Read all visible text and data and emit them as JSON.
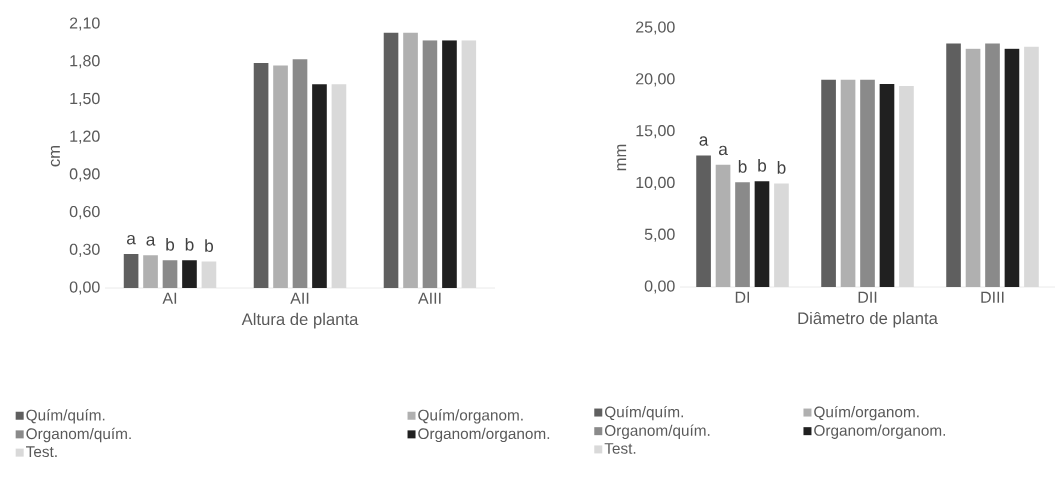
{
  "chart_data": [
    {
      "type": "bar",
      "xlabel": "Altura de planta",
      "ylabel": "cm",
      "categories": [
        "AI",
        "AII",
        "AIII"
      ],
      "series": [
        {
          "name": "Quím/quím.",
          "color": "#5f5f5f",
          "values": [
            0.27,
            1.79,
            2.03
          ]
        },
        {
          "name": "Quím/organom.",
          "color": "#b0b0b0",
          "values": [
            0.26,
            1.77,
            2.03
          ]
        },
        {
          "name": "Organom/quím.",
          "color": "#8a8a8a",
          "values": [
            0.22,
            1.82,
            1.97
          ]
        },
        {
          "name": "Organom/organom.",
          "color": "#202020",
          "values": [
            0.22,
            1.62,
            1.97
          ]
        },
        {
          "name": "Test.",
          "color": "#d9d9d9",
          "values": [
            0.21,
            1.62,
            1.97
          ]
        }
      ],
      "ylim": [
        0,
        2.1
      ],
      "yticks": [
        {
          "value": 0,
          "label": "0,00"
        },
        {
          "value": 0.3,
          "label": "0,30"
        },
        {
          "value": 0.6,
          "label": "0,60"
        },
        {
          "value": 0.9,
          "label": "0,90"
        },
        {
          "value": 1.2,
          "label": "1,20"
        },
        {
          "value": 1.5,
          "label": "1,50"
        },
        {
          "value": 1.8,
          "label": "1,80"
        },
        {
          "value": 2.1,
          "label": "2,10"
        }
      ],
      "annotations": [
        "a",
        "a",
        "b",
        "b",
        "b"
      ],
      "grid": false,
      "legend": "bottom"
    },
    {
      "type": "bar",
      "xlabel": "Diâmetro de planta",
      "ylabel": "mm",
      "categories": [
        "DI",
        "DII",
        "DIII"
      ],
      "series": [
        {
          "name": "Quím/quím.",
          "color": "#5f5f5f",
          "values": [
            12.7,
            20.0,
            23.5
          ]
        },
        {
          "name": "Quím/organom.",
          "color": "#b0b0b0",
          "values": [
            11.8,
            20.0,
            23.0
          ]
        },
        {
          "name": "Organom/quím.",
          "color": "#8a8a8a",
          "values": [
            10.1,
            20.0,
            23.5
          ]
        },
        {
          "name": "Organom/organom.",
          "color": "#202020",
          "values": [
            10.2,
            19.6,
            23.0
          ]
        },
        {
          "name": "Test.",
          "color": "#d9d9d9",
          "values": [
            10.0,
            19.4,
            23.2
          ]
        }
      ],
      "ylim": [
        0,
        25
      ],
      "yticks": [
        {
          "value": 0,
          "label": "0,00"
        },
        {
          "value": 5,
          "label": "5,00"
        },
        {
          "value": 10,
          "label": "10,00"
        },
        {
          "value": 15,
          "label": "15,00"
        },
        {
          "value": 20,
          "label": "20,00"
        },
        {
          "value": 25,
          "label": "25,00"
        }
      ],
      "annotations": [
        "a",
        "a",
        "b",
        "b",
        "b"
      ],
      "grid": false,
      "legend": "bottom"
    }
  ]
}
